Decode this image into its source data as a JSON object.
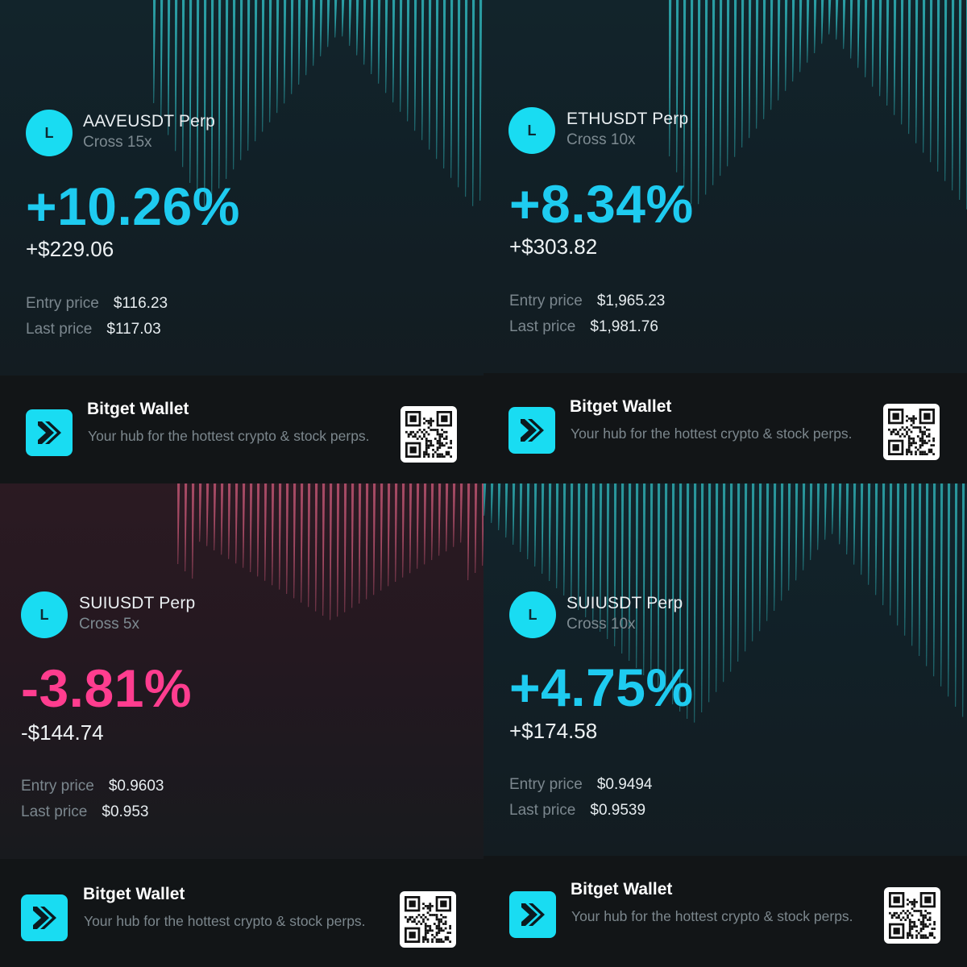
{
  "cards": [
    {
      "id": "aave",
      "variant": "gain",
      "coin_letter": "L",
      "pair": "AAVEUSDT Perp",
      "mode": "Cross 15x",
      "pnl_percent": "+10.26%",
      "pnl_amount": "+$229.06",
      "entry_label": "Entry price",
      "entry_value": "$116.23",
      "last_label": "Last price",
      "last_value": "$117.03",
      "brand": "Bitget Wallet",
      "tagline": "Your hub for the hottest crypto & stock perps."
    },
    {
      "id": "eth",
      "variant": "gain",
      "coin_letter": "L",
      "pair": "ETHUSDT Perp",
      "mode": "Cross 10x",
      "pnl_percent": "+8.34%",
      "pnl_amount": "+$303.82",
      "entry_label": "Entry price",
      "entry_value": "$1,965.23",
      "last_label": "Last price",
      "last_value": "$1,981.76",
      "brand": "Bitget Wallet",
      "tagline": "Your hub for the hottest crypto & stock perps."
    },
    {
      "id": "sui-5x",
      "variant": "loss",
      "coin_letter": "L",
      "pair": "SUIUSDT Perp",
      "mode": "Cross 5x",
      "pnl_percent": "-3.81%",
      "pnl_amount": "-$144.74",
      "entry_label": "Entry price",
      "entry_value": "$0.9603",
      "last_label": "Last price",
      "last_value": "$0.953",
      "brand": "Bitget Wallet",
      "tagline": "Your hub for the hottest crypto & stock perps."
    },
    {
      "id": "sui-10x",
      "variant": "gain",
      "coin_letter": "L",
      "pair": "SUIUSDT Perp",
      "mode": "Cross 10x",
      "pnl_percent": "+4.75%",
      "pnl_amount": "+$174.58",
      "entry_label": "Entry price",
      "entry_value": "$0.9494",
      "last_label": "Last price",
      "last_value": "$0.9539",
      "brand": "Bitget Wallet",
      "tagline": "Your hub for the hottest crypto & stock perps."
    }
  ],
  "colors": {
    "gain": "#1ecbf0",
    "loss": "#ff3d8f",
    "accent": "#19dcf2",
    "stripes_gain": "#2fb3b8",
    "stripes_loss": "#b4506b"
  },
  "icons": {
    "coin": "coin-icon",
    "logo": "bitget-wallet-logo-icon",
    "qr": "qr-code-icon"
  }
}
